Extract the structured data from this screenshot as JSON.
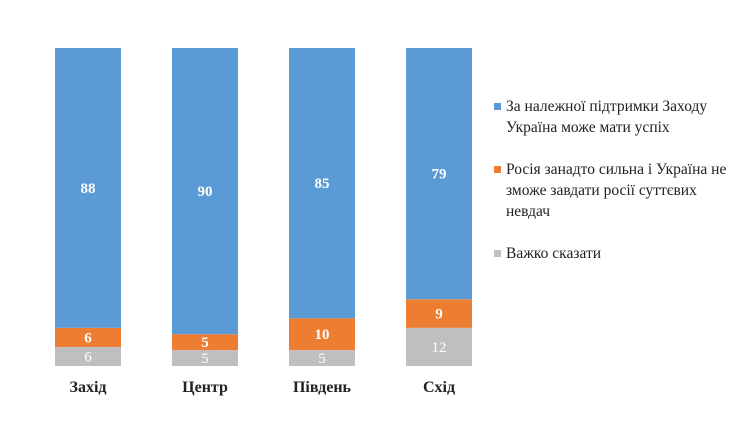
{
  "chart_data": {
    "type": "bar",
    "stacked": true,
    "categories": [
      "Захід",
      "Центр",
      "Південь",
      "Схід"
    ],
    "series": [
      {
        "name": "Важко сказати",
        "color": "#bfbfbf",
        "values": [
          6,
          5,
          5,
          12
        ]
      },
      {
        "name": "Росія занадто сильна і Україна не зможе завдати росії суттєвих невдач",
        "color": "#ed7d31",
        "values": [
          6,
          5,
          10,
          9
        ]
      },
      {
        "name": "За належної підтримки Заходу Україна може мати успіх",
        "color": "#5b9bd5",
        "values": [
          88,
          90,
          85,
          79
        ]
      }
    ],
    "legend_order": [
      2,
      1,
      0
    ],
    "legend_position": "right",
    "grid": false
  }
}
